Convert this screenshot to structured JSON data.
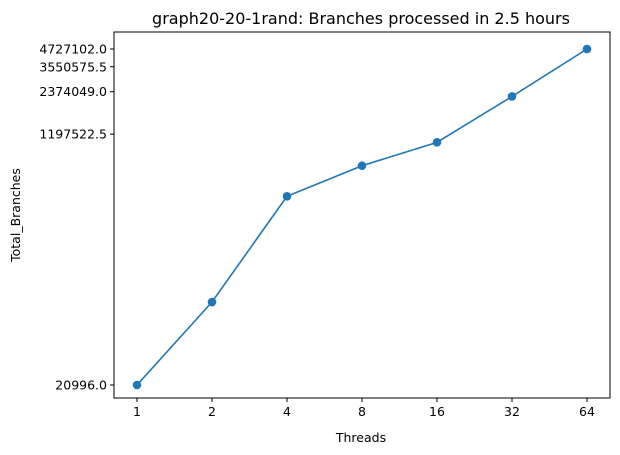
{
  "chart_data": {
    "type": "line",
    "title": "graph20-20-1rand: Branches processed in 2.5 hours",
    "xlabel": "Threads",
    "ylabel": "Total_Branches",
    "x_scale": "log2",
    "y_scale": "log",
    "x": [
      1,
      2,
      4,
      8,
      16,
      32,
      64
    ],
    "x_tick_labels": [
      "1",
      "2",
      "4",
      "8",
      "16",
      "32",
      "64"
    ],
    "y_ticks": [
      20996.0,
      1197522.5,
      2374049.0,
      3550575.5,
      4727102.0
    ],
    "y_tick_labels": [
      "20996.0",
      "1197522.5",
      "2374049.0",
      "3550575.5",
      "4727102.0"
    ],
    "series": [
      {
        "values": [
          20996,
          80000,
          440000,
          720000,
          1050000,
          2200000,
          4727102
        ],
        "color": "#1f77b4",
        "marker": "circle"
      }
    ],
    "grid": false,
    "legend": "none"
  }
}
